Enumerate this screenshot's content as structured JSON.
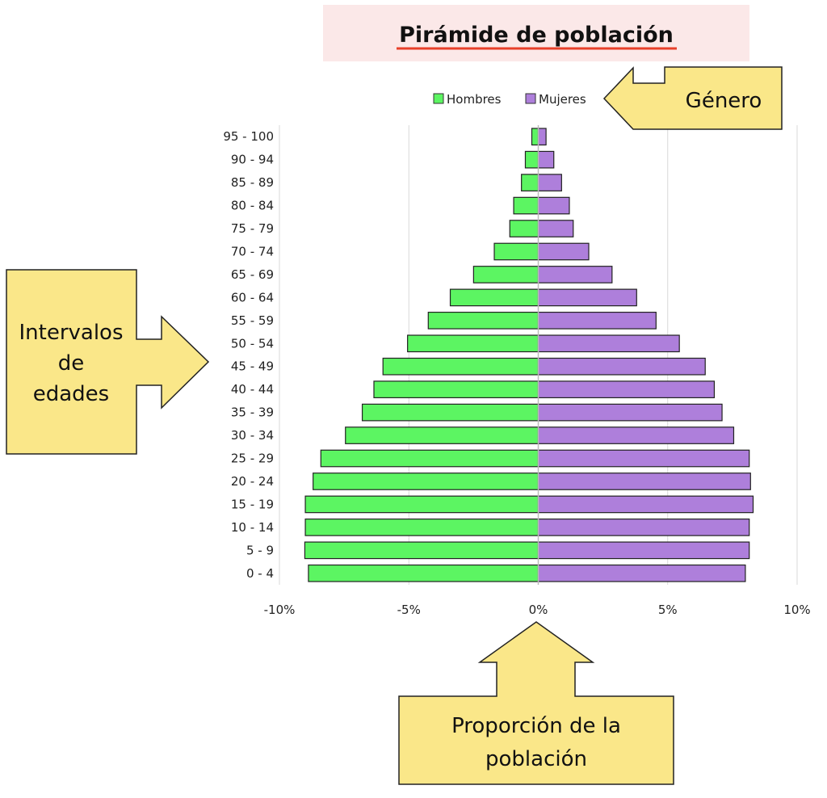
{
  "title": "Pirámide de población",
  "colors": {
    "male": "#5cf562",
    "female": "#ae7fdb",
    "callout": "#fae789",
    "title_bg": "#fbe8e8",
    "title_underline": "#e8402a"
  },
  "callouts": {
    "genero": "Género",
    "intervalos_line1": "Intervalos",
    "intervalos_line2": "de",
    "intervalos_line3": "edades",
    "proporcion_line1": "Proporción de la",
    "proporcion_line2": "población"
  },
  "chart_data": {
    "type": "bar",
    "orientation": "horizontal",
    "title": "Pirámide de población",
    "categories": [
      "95 - 100",
      "90 - 94",
      "85 - 89",
      "80 - 84",
      "75 - 79",
      "70 - 74",
      "65 - 69",
      "60 - 64",
      "55 - 59",
      "50 - 54",
      "45 - 49",
      "40 - 44",
      "35 - 39",
      "30 - 34",
      "25 - 29",
      "20 - 24",
      "15 - 19",
      "10 - 14",
      "5 - 9",
      "0 - 4"
    ],
    "series": [
      {
        "name": "Hombres",
        "values": [
          -0.25,
          -0.5,
          -0.65,
          -0.95,
          -1.1,
          -1.7,
          -2.5,
          -3.4,
          -4.25,
          -5.05,
          -6.0,
          -6.35,
          -6.8,
          -7.45,
          -8.4,
          -8.7,
          -9.0,
          -9.0,
          -9.02,
          -8.88
        ]
      },
      {
        "name": "Mujeres",
        "values": [
          0.3,
          0.6,
          0.9,
          1.2,
          1.35,
          1.95,
          2.85,
          3.8,
          4.55,
          5.45,
          6.45,
          6.8,
          7.1,
          7.55,
          8.15,
          8.2,
          8.3,
          8.15,
          8.15,
          8.0
        ]
      }
    ],
    "xlim": [
      -10,
      10
    ],
    "xticks": [
      {
        "value": -10,
        "label": "-10%"
      },
      {
        "value": -5,
        "label": "-5%"
      },
      {
        "value": 0,
        "label": "0%"
      },
      {
        "value": 5,
        "label": "5%"
      },
      {
        "value": 10,
        "label": "10%"
      }
    ],
    "xlabel": "",
    "ylabel": "",
    "grid": true,
    "legend": {
      "position": "top",
      "entries": [
        "Hombres",
        "Mujeres"
      ]
    }
  }
}
